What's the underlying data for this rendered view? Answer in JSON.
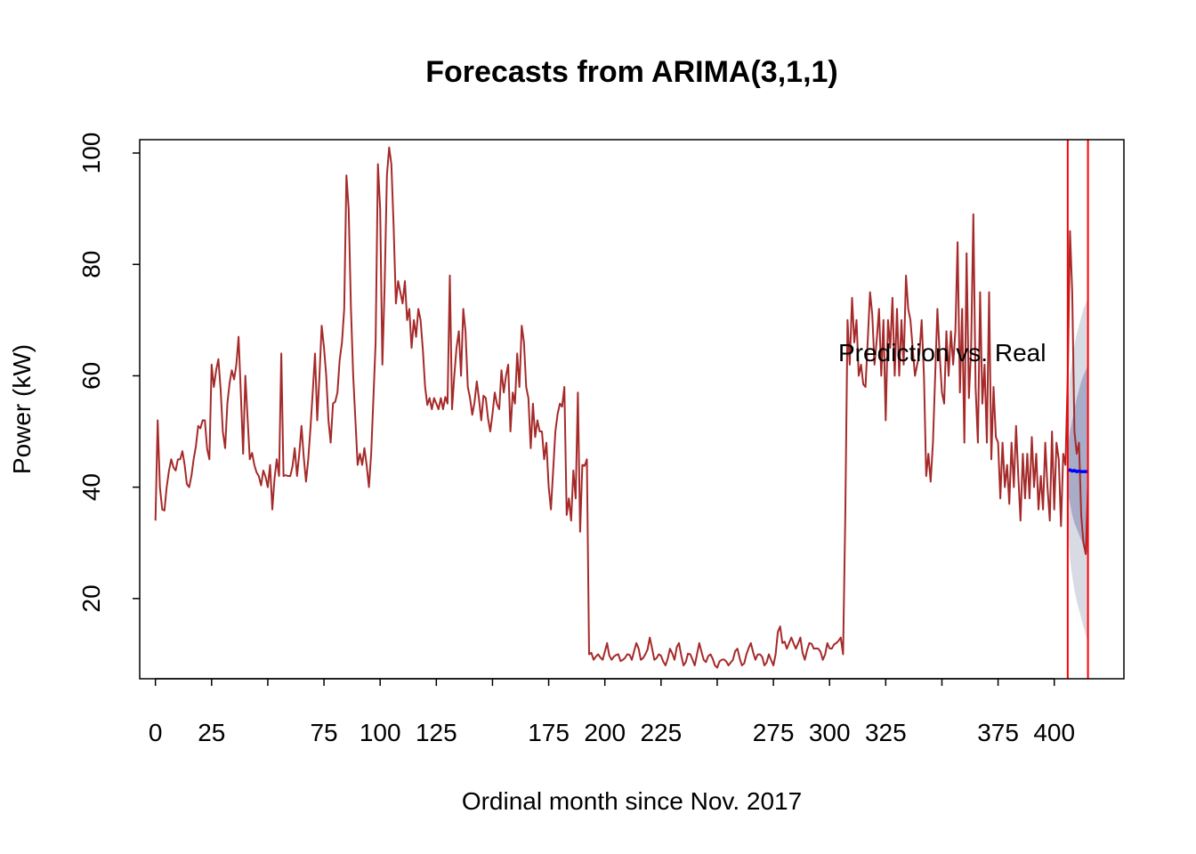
{
  "chart_data": {
    "type": "line",
    "title": "Forecasts from ARIMA(3,1,1)",
    "xlabel": "Ordinal month since Nov. 2017",
    "ylabel": "Power (kW)",
    "xlim": [
      -7,
      431
    ],
    "ylim": [
      5.6,
      102.4
    ],
    "x_ticks": [
      0,
      25,
      50,
      75,
      100,
      125,
      150,
      175,
      200,
      225,
      250,
      275,
      300,
      325,
      350,
      375,
      400
    ],
    "x_tick_labels": [
      "0",
      "25",
      "",
      "75",
      "100",
      "125",
      "",
      "175",
      "200",
      "225",
      "",
      "275",
      "300",
      "325",
      "",
      "375",
      "400"
    ],
    "y_ticks": [
      20,
      40,
      60,
      80,
      100
    ],
    "y_tick_labels": [
      "20",
      "40",
      "60",
      "80",
      "100"
    ],
    "annotation": "Prediction vs. Real",
    "colors": {
      "actual": "#a52a2a",
      "forecast": "#0000ff",
      "interval_80": "#a8acc8",
      "interval_95": "#d9dbe4",
      "vline": "#ff0000"
    },
    "vlines_x": [
      406,
      415
    ],
    "keypoints": [
      [
        0,
        34
      ],
      [
        1,
        52
      ],
      [
        2,
        40
      ],
      [
        3,
        36
      ],
      [
        5,
        40
      ],
      [
        7,
        45
      ],
      [
        9,
        43
      ],
      [
        11,
        45
      ],
      [
        13,
        44
      ],
      [
        15,
        40
      ],
      [
        17,
        45
      ],
      [
        19,
        51
      ],
      [
        21,
        52
      ],
      [
        24,
        45
      ],
      [
        25,
        62
      ],
      [
        26,
        58
      ],
      [
        27,
        61
      ],
      [
        28,
        63
      ],
      [
        30,
        50
      ],
      [
        31,
        47
      ],
      [
        32,
        55
      ],
      [
        34,
        61
      ],
      [
        36,
        62
      ],
      [
        37,
        67
      ],
      [
        38,
        57
      ],
      [
        39,
        46
      ],
      [
        40,
        60
      ],
      [
        42,
        45
      ],
      [
        44,
        44
      ],
      [
        46,
        42
      ],
      [
        48,
        43
      ],
      [
        50,
        40
      ],
      [
        51,
        44
      ],
      [
        52,
        36
      ],
      [
        54,
        45
      ],
      [
        55,
        42
      ],
      [
        56,
        64
      ],
      [
        57,
        42
      ],
      [
        59,
        42
      ],
      [
        60,
        42
      ],
      [
        62,
        47
      ],
      [
        63,
        42
      ],
      [
        65,
        51
      ],
      [
        67,
        41
      ],
      [
        68,
        45
      ],
      [
        70,
        57
      ],
      [
        71,
        64
      ],
      [
        72,
        52
      ],
      [
        73,
        60
      ],
      [
        74,
        69
      ],
      [
        76,
        60
      ],
      [
        77,
        52
      ],
      [
        78,
        48
      ],
      [
        79,
        55
      ],
      [
        81,
        57
      ],
      [
        83,
        66
      ],
      [
        84,
        72
      ],
      [
        85,
        96
      ],
      [
        86,
        90
      ],
      [
        87,
        72
      ],
      [
        88,
        60
      ],
      [
        89,
        52
      ],
      [
        90,
        44
      ],
      [
        91,
        46
      ],
      [
        92,
        44
      ],
      [
        93,
        47
      ],
      [
        94,
        44
      ],
      [
        95,
        40
      ],
      [
        96,
        46
      ],
      [
        98,
        66
      ],
      [
        99,
        98
      ],
      [
        100,
        90
      ],
      [
        101,
        62
      ],
      [
        102,
        76
      ],
      [
        103,
        96
      ],
      [
        104,
        101
      ],
      [
        105,
        98
      ],
      [
        106,
        87
      ],
      [
        107,
        73
      ],
      [
        108,
        77
      ],
      [
        109,
        75
      ],
      [
        110,
        73
      ],
      [
        111,
        77
      ],
      [
        112,
        70
      ],
      [
        113,
        72
      ],
      [
        114,
        65
      ],
      [
        115,
        70
      ],
      [
        116,
        67
      ],
      [
        117,
        72
      ],
      [
        118,
        70
      ],
      [
        120,
        58
      ],
      [
        122,
        56
      ],
      [
        123,
        54
      ],
      [
        124,
        56
      ],
      [
        125,
        55
      ],
      [
        126,
        54
      ],
      [
        127,
        56
      ],
      [
        128,
        54
      ],
      [
        130,
        55
      ],
      [
        131,
        78
      ],
      [
        132,
        54
      ],
      [
        133,
        60
      ],
      [
        134,
        65
      ],
      [
        135,
        68
      ],
      [
        136,
        60
      ],
      [
        137,
        72
      ],
      [
        138,
        68
      ],
      [
        139,
        58
      ],
      [
        140,
        56
      ],
      [
        141,
        53
      ],
      [
        143,
        59
      ],
      [
        145,
        52
      ],
      [
        147,
        56
      ],
      [
        149,
        50
      ],
      [
        151,
        57
      ],
      [
        153,
        54
      ],
      [
        154,
        61
      ],
      [
        155,
        57
      ],
      [
        156,
        60
      ],
      [
        157,
        62
      ],
      [
        158,
        50
      ],
      [
        159,
        57
      ],
      [
        160,
        55
      ],
      [
        161,
        64
      ],
      [
        162,
        58
      ],
      [
        163,
        69
      ],
      [
        164,
        66
      ],
      [
        165,
        58
      ],
      [
        166,
        56
      ],
      [
        167,
        47
      ],
      [
        168,
        55
      ],
      [
        169,
        49
      ],
      [
        170,
        52
      ],
      [
        171,
        50
      ],
      [
        172,
        50
      ],
      [
        173,
        45
      ],
      [
        174,
        48
      ],
      [
        175,
        40
      ],
      [
        176,
        36
      ],
      [
        177,
        43
      ],
      [
        178,
        50
      ],
      [
        180,
        55
      ],
      [
        182,
        58
      ],
      [
        183,
        35
      ],
      [
        184,
        38
      ],
      [
        185,
        34
      ],
      [
        186,
        43
      ],
      [
        187,
        38
      ],
      [
        188,
        57
      ],
      [
        189,
        32
      ],
      [
        190,
        44
      ],
      [
        192,
        45
      ],
      [
        193,
        10
      ],
      [
        195,
        9
      ],
      [
        197,
        10
      ],
      [
        199,
        9
      ],
      [
        201,
        12
      ],
      [
        203,
        9
      ],
      [
        206,
        10
      ],
      [
        208,
        9
      ],
      [
        210,
        10
      ],
      [
        212,
        9
      ],
      [
        214,
        12
      ],
      [
        216,
        9
      ],
      [
        218,
        10
      ],
      [
        220,
        13
      ],
      [
        222,
        9
      ],
      [
        224,
        10
      ],
      [
        227,
        8
      ],
      [
        229,
        11
      ],
      [
        231,
        9
      ],
      [
        233,
        12
      ],
      [
        235,
        8
      ],
      [
        238,
        10
      ],
      [
        240,
        8
      ],
      [
        242,
        12
      ],
      [
        244,
        9
      ],
      [
        247,
        10
      ],
      [
        249,
        8
      ],
      [
        252,
        9
      ],
      [
        255,
        8
      ],
      [
        257,
        9
      ],
      [
        259,
        11
      ],
      [
        261,
        8
      ],
      [
        263,
        10
      ],
      [
        265,
        12
      ],
      [
        267,
        9
      ],
      [
        269,
        10
      ],
      [
        271,
        8
      ],
      [
        273,
        10
      ],
      [
        275,
        8
      ],
      [
        276,
        10
      ],
      [
        277,
        14
      ],
      [
        278,
        15
      ],
      [
        279,
        12
      ],
      [
        281,
        11
      ],
      [
        283,
        13
      ],
      [
        285,
        11
      ],
      [
        287,
        13
      ],
      [
        289,
        9
      ],
      [
        291,
        12
      ],
      [
        293,
        11
      ],
      [
        295,
        11
      ],
      [
        297,
        9
      ],
      [
        299,
        12
      ],
      [
        301,
        11
      ],
      [
        303,
        12
      ],
      [
        305,
        13
      ],
      [
        306,
        10
      ],
      [
        307,
        35
      ],
      [
        308,
        70
      ],
      [
        309,
        62
      ],
      [
        310,
        74
      ],
      [
        311,
        66
      ],
      [
        312,
        70
      ],
      [
        313,
        60
      ],
      [
        314,
        62
      ],
      [
        316,
        58
      ],
      [
        318,
        75
      ],
      [
        319,
        71
      ],
      [
        320,
        62
      ],
      [
        322,
        72
      ],
      [
        323,
        60
      ],
      [
        324,
        70
      ],
      [
        325,
        52
      ],
      [
        326,
        70
      ],
      [
        327,
        65
      ],
      [
        328,
        74
      ],
      [
        329,
        60
      ],
      [
        330,
        72
      ],
      [
        331,
        60
      ],
      [
        332,
        70
      ],
      [
        333,
        62
      ],
      [
        334,
        78
      ],
      [
        335,
        72
      ],
      [
        336,
        70
      ],
      [
        337,
        65
      ],
      [
        338,
        60
      ],
      [
        339,
        62
      ],
      [
        340,
        64
      ],
      [
        341,
        70
      ],
      [
        342,
        60
      ],
      [
        343,
        42
      ],
      [
        344,
        46
      ],
      [
        345,
        41
      ],
      [
        346,
        48
      ],
      [
        347,
        60
      ],
      [
        348,
        72
      ],
      [
        349,
        64
      ],
      [
        350,
        57
      ],
      [
        351,
        55
      ],
      [
        352,
        68
      ],
      [
        353,
        60
      ],
      [
        354,
        68
      ],
      [
        355,
        62
      ],
      [
        356,
        68
      ],
      [
        357,
        84
      ],
      [
        358,
        57
      ],
      [
        359,
        72
      ],
      [
        360,
        48
      ],
      [
        361,
        82
      ],
      [
        362,
        56
      ],
      [
        363,
        65
      ],
      [
        364,
        89
      ],
      [
        365,
        58
      ],
      [
        366,
        48
      ],
      [
        367,
        75
      ],
      [
        368,
        55
      ],
      [
        369,
        62
      ],
      [
        370,
        48
      ],
      [
        371,
        75
      ],
      [
        372,
        45
      ],
      [
        373,
        58
      ],
      [
        374,
        49
      ],
      [
        375,
        48
      ],
      [
        376,
        38
      ],
      [
        377,
        48
      ],
      [
        378,
        40
      ],
      [
        379,
        44
      ],
      [
        380,
        37
      ],
      [
        381,
        48
      ],
      [
        382,
        40
      ],
      [
        383,
        51
      ],
      [
        384,
        42
      ],
      [
        385,
        34
      ],
      [
        386,
        46
      ],
      [
        387,
        38
      ],
      [
        388,
        46
      ],
      [
        389,
        38
      ],
      [
        390,
        49
      ],
      [
        391,
        40
      ],
      [
        392,
        46
      ],
      [
        393,
        36
      ],
      [
        394,
        42
      ],
      [
        395,
        36
      ],
      [
        396,
        48
      ],
      [
        397,
        40
      ],
      [
        398,
        34
      ],
      [
        399,
        50
      ],
      [
        400,
        36
      ],
      [
        401,
        48
      ],
      [
        402,
        45
      ],
      [
        403,
        33
      ],
      [
        404,
        46
      ],
      [
        405,
        44
      ],
      [
        406,
        60
      ],
      [
        407,
        86
      ],
      [
        408,
        75
      ],
      [
        409,
        50
      ],
      [
        410,
        46
      ],
      [
        411,
        48
      ],
      [
        412,
        35
      ],
      [
        413,
        30
      ],
      [
        414,
        28
      ],
      [
        415,
        40
      ]
    ],
    "forecast": {
      "x": [
        406,
        407,
        408,
        409,
        410,
        411,
        412,
        413,
        414,
        415
      ],
      "mean": [
        43.0,
        43.1,
        42.9,
        43.0,
        42.8,
        42.9,
        42.8,
        42.8,
        42.8,
        42.8
      ],
      "lower80": [
        39,
        37,
        35,
        33.5,
        32.5,
        31.5,
        30.5,
        29.5,
        28.5,
        28
      ],
      "upper80": [
        47,
        50,
        52,
        54,
        56,
        57.5,
        59,
        60,
        61,
        62
      ],
      "lower95": [
        34,
        27,
        24,
        21.5,
        19.5,
        18,
        16.5,
        15,
        13.5,
        12
      ],
      "upper95": [
        52,
        60,
        63,
        65.5,
        67.5,
        69,
        70.5,
        72,
        73,
        74
      ]
    }
  }
}
